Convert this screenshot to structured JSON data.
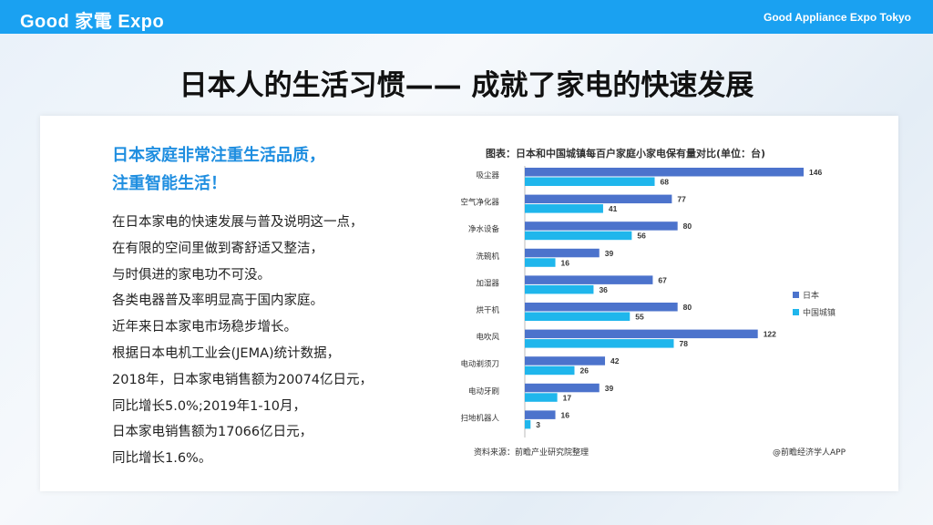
{
  "header": {
    "brand": "Good 家電 Expo",
    "brand_right": "Good Appliance Expo Tokyo"
  },
  "page_title": "日本人的生活习惯—— 成就了家电的快速发展",
  "left_panel": {
    "headline_lines": [
      "日本家庭非常注重生活品质，",
      "注重智能生活！"
    ],
    "body_lines": [
      "在日本家电的快速发展与普及说明这一点，",
      "在有限的空间里做到寄舒适又整洁，",
      "与时俱进的家电功不可没。",
      "各类电器普及率明显高于国内家庭。",
      "近年来日本家电市场稳步增长。",
      "根据日本电机工业会(JEMA)统计数据，",
      "2018年，日本家电销售额为20074亿日元，",
      "同比增长5.0%;2019年1-10月，",
      "日本家电销售额为17066亿日元，",
      "同比增长1.6%。"
    ]
  },
  "chart_data": {
    "type": "bar",
    "orientation": "horizontal",
    "title": "图表：日本和中国城镇每百户家庭小家电保有量对比(单位：台)",
    "categories": [
      "吸尘器",
      "空气净化器",
      "净水设备",
      "洗碗机",
      "加湿器",
      "烘干机",
      "电吹风",
      "电动剃须刀",
      "电动牙刷",
      "扫地机器人"
    ],
    "series": [
      {
        "name": "日本",
        "color": "#4c73cc",
        "values": [
          146,
          77,
          80,
          39,
          67,
          80,
          122,
          42,
          39,
          16
        ]
      },
      {
        "name": "中国城镇",
        "color": "#1fb6ec",
        "values": [
          68,
          41,
          56,
          16,
          36,
          55,
          78,
          26,
          17,
          3
        ]
      }
    ],
    "xlim": [
      0,
      146
    ],
    "legend_position": "right",
    "grid": false,
    "source": "资料来源：前瞻产业研究院整理",
    "credit": "@前瞻经济学人APP"
  }
}
